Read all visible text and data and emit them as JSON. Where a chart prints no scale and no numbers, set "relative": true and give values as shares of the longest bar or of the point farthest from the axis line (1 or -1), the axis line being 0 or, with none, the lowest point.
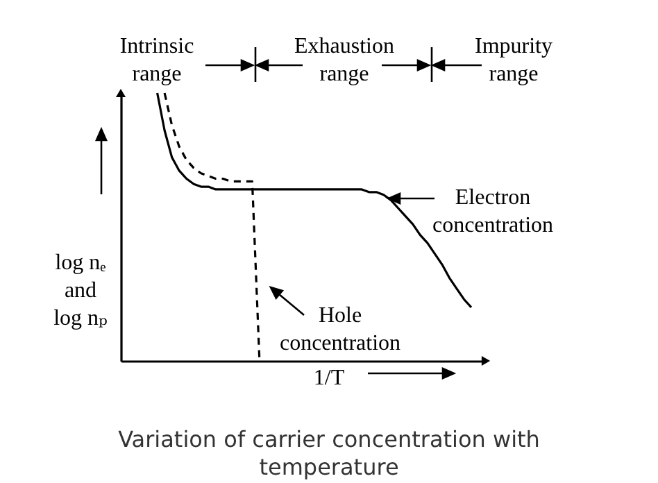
{
  "chart_data": {
    "type": "line",
    "relative": true,
    "xlabel": "1/T",
    "ylabel": "log nₑ\nand\nlog nₚ",
    "categories": [
      null,
      null,
      null,
      null,
      null,
      null,
      null,
      null,
      null,
      null,
      null,
      null,
      null,
      null,
      null,
      null,
      null,
      null,
      null,
      null,
      null,
      null,
      null,
      null,
      null,
      null,
      null,
      null,
      null,
      null,
      null,
      null,
      null,
      null,
      null,
      null,
      null,
      null,
      null,
      null,
      null,
      null,
      null,
      null,
      null,
      null,
      null,
      null,
      null,
      null,
      null
    ],
    "annotations": [
      "Intrinsic range",
      "Exhaustion range",
      "Impurity range",
      "Variation of carrier concentration with temperature",
      "Electron concentration",
      "Hole concentration"
    ],
    "series": [
      {
        "color": "#000000",
        "line_style": "solid",
        "values": [
          null,
          null,
          null,
          null,
          null,
          1,
          0.86,
          0.76,
          0.71,
          0.68,
          0.66,
          0.65,
          0.65,
          0.64,
          0.64,
          0.64,
          0.64,
          0.64,
          0.64,
          0.64,
          0.64,
          0.64,
          0.64,
          0.64,
          0.64,
          0.64,
          0.64,
          0.64,
          0.64,
          0.64,
          0.64,
          0.64,
          0.64,
          0.64,
          0.63,
          0.63,
          0.62,
          0.6,
          0.57,
          0.54,
          0.51,
          0.47,
          0.44,
          0.4,
          0.36,
          0.31,
          0.27,
          0.23,
          0.2,
          null,
          null
        ]
      },
      {
        "color": "#000000",
        "line_style": "dashed",
        "values": [
          null,
          null,
          null,
          null,
          null,
          null,
          1,
          0.88,
          0.8,
          0.75,
          0.72,
          0.7,
          0.69,
          0.68,
          0.68,
          0.67,
          0.67,
          0.67,
          0.67,
          0,
          null,
          null,
          null,
          null,
          null,
          null,
          null,
          null,
          null,
          null,
          null,
          null,
          null,
          null,
          null,
          null,
          null,
          null,
          null,
          null,
          null,
          null,
          null,
          null,
          null,
          null,
          null,
          null,
          null,
          null,
          null
        ]
      }
    ]
  }
}
